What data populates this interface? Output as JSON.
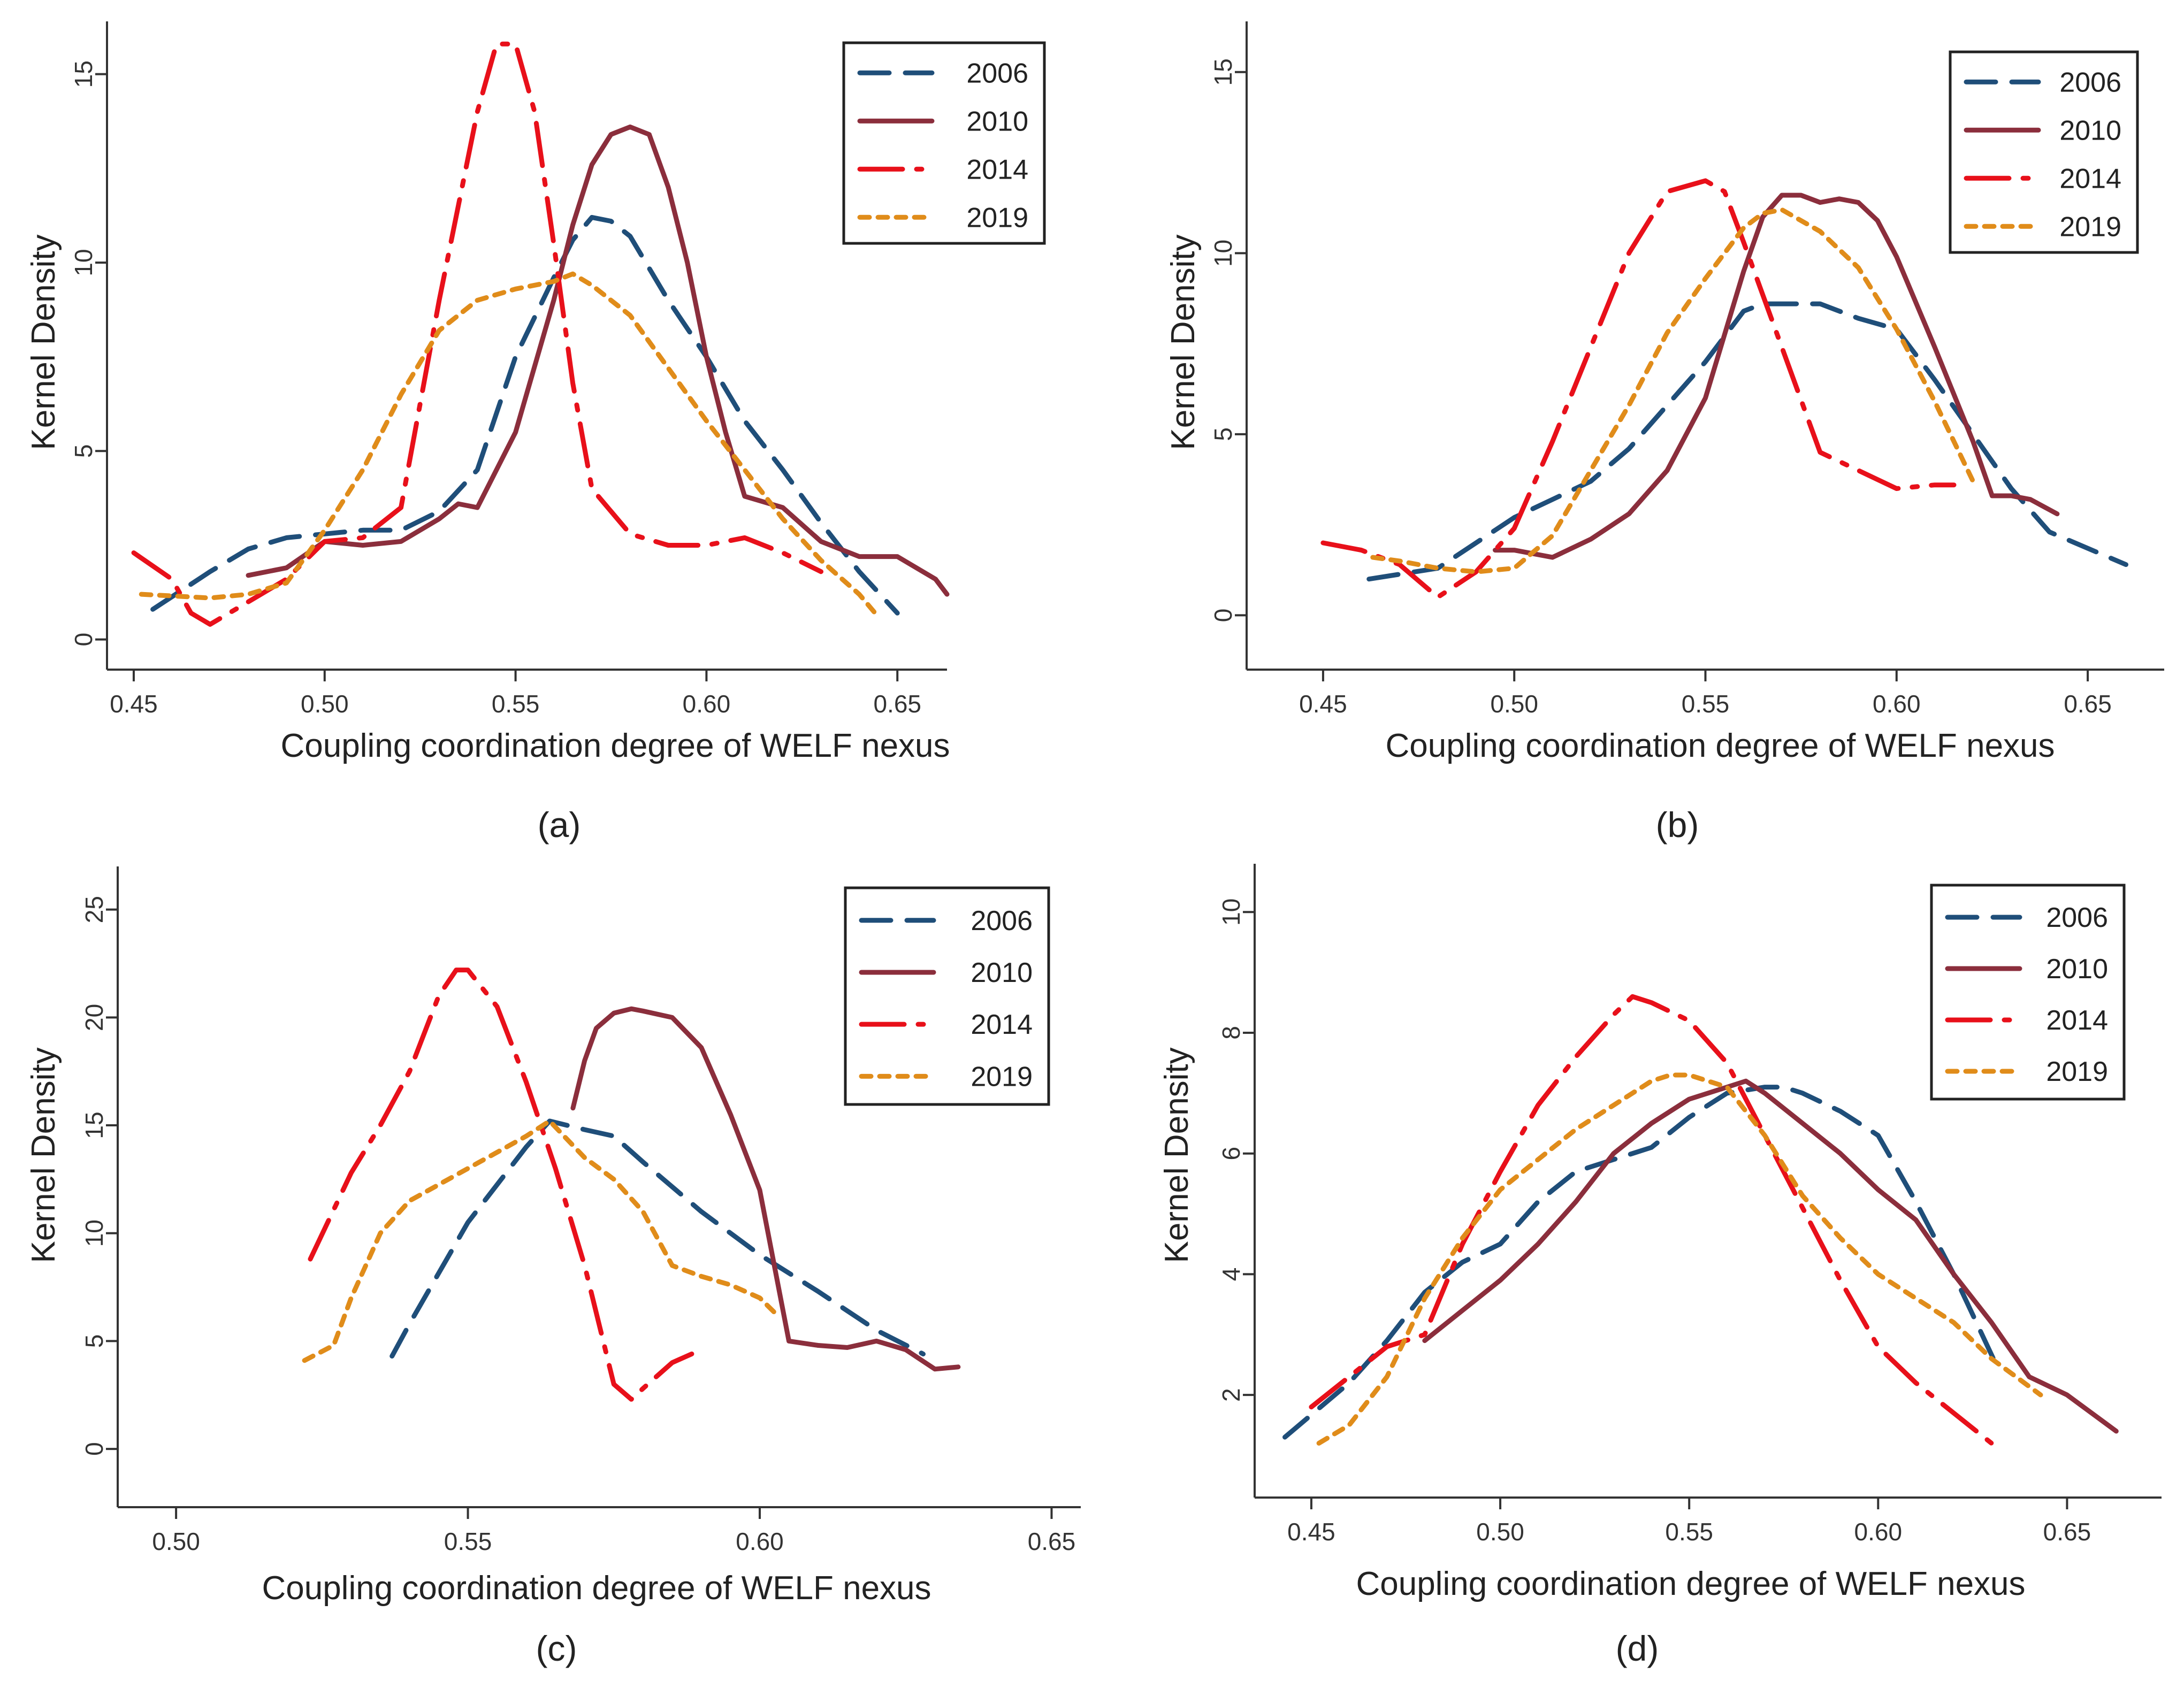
{
  "figure": {
    "caption": ""
  },
  "colors": {
    "2006": "#1f4e79",
    "2010": "#8b2e3c",
    "2014": "#e8101a",
    "2019": "#e08c1a"
  },
  "dashes": {
    "2006": "55,30",
    "2010": "",
    "2014": "80,26,10,26",
    "2019": "18,16"
  },
  "chart_data": [
    {
      "id": "a",
      "type": "line",
      "panel_label": "(a)",
      "xlabel": "Coupling coordination degree of WELF nexus",
      "ylabel": "Kernel Density",
      "xlim": [
        0.443,
        0.663
      ],
      "ylim": [
        -0.8,
        16.4
      ],
      "xticks": [
        0.45,
        0.5,
        0.55,
        0.6,
        0.65
      ],
      "xtick_labels": [
        "0.45",
        "0.50",
        "0.55",
        "0.60",
        "0.65"
      ],
      "yticks": [
        0,
        5,
        10,
        15
      ],
      "ytick_labels": [
        "0",
        "5",
        "10",
        "15"
      ],
      "legend": [
        "2006",
        "2010",
        "2014",
        "2019"
      ],
      "series": [
        {
          "name": "2006",
          "x": [
            0.455,
            0.47,
            0.48,
            0.49,
            0.5,
            0.51,
            0.52,
            0.53,
            0.54,
            0.55,
            0.56,
            0.565,
            0.57,
            0.575,
            0.58,
            0.59,
            0.6,
            0.61,
            0.62,
            0.63,
            0.64,
            0.65
          ],
          "y": [
            0.8,
            1.8,
            2.4,
            2.7,
            2.8,
            2.9,
            2.9,
            3.4,
            4.5,
            7.5,
            9.6,
            10.6,
            11.2,
            11.1,
            10.7,
            9.0,
            7.5,
            5.8,
            4.5,
            3.1,
            1.8,
            0.7
          ]
        },
        {
          "name": "2010",
          "x": [
            0.48,
            0.49,
            0.5,
            0.51,
            0.52,
            0.53,
            0.535,
            0.54,
            0.55,
            0.56,
            0.565,
            0.57,
            0.575,
            0.58,
            0.585,
            0.59,
            0.595,
            0.6,
            0.605,
            0.61,
            0.62,
            0.63,
            0.64,
            0.65,
            0.66,
            0.663
          ],
          "y": [
            1.7,
            1.9,
            2.6,
            2.5,
            2.6,
            3.2,
            3.6,
            3.5,
            5.5,
            9.0,
            11.0,
            12.6,
            13.4,
            13.6,
            13.4,
            12.0,
            10.0,
            7.5,
            5.5,
            3.8,
            3.5,
            2.6,
            2.2,
            2.2,
            1.6,
            1.2
          ]
        },
        {
          "name": "2014",
          "x": [
            0.45,
            0.46,
            0.465,
            0.47,
            0.48,
            0.49,
            0.5,
            0.51,
            0.52,
            0.53,
            0.54,
            0.545,
            0.55,
            0.555,
            0.56,
            0.565,
            0.57,
            0.58,
            0.59,
            0.6,
            0.61,
            0.62,
            0.63
          ],
          "y": [
            2.3,
            1.6,
            0.7,
            0.4,
            1.0,
            1.6,
            2.6,
            2.7,
            3.5,
            9.0,
            14.0,
            15.8,
            15.8,
            14.0,
            10.5,
            6.8,
            4.0,
            2.8,
            2.5,
            2.5,
            2.7,
            2.3,
            1.8
          ]
        },
        {
          "name": "2019",
          "x": [
            0.452,
            0.47,
            0.48,
            0.49,
            0.5,
            0.51,
            0.52,
            0.53,
            0.54,
            0.55,
            0.56,
            0.565,
            0.57,
            0.58,
            0.59,
            0.6,
            0.61,
            0.62,
            0.63,
            0.64,
            0.645
          ],
          "y": [
            1.2,
            1.1,
            1.2,
            1.5,
            2.9,
            4.5,
            6.5,
            8.2,
            9.0,
            9.3,
            9.5,
            9.7,
            9.4,
            8.6,
            7.2,
            5.8,
            4.5,
            3.2,
            2.1,
            1.2,
            0.6
          ]
        }
      ]
    },
    {
      "id": "b",
      "type": "line",
      "panel_label": "(b)",
      "xlabel": "Coupling coordination degree of WELF nexus",
      "ylabel": "Kernel Density",
      "xlim": [
        0.43,
        0.67
      ],
      "ylim": [
        -1.5,
        16.4
      ],
      "xticks": [
        0.45,
        0.5,
        0.55,
        0.6,
        0.65
      ],
      "xtick_labels": [
        "0.45",
        "0.50",
        "0.55",
        "0.60",
        "0.65"
      ],
      "yticks": [
        0,
        5,
        10,
        15
      ],
      "ytick_labels": [
        "0",
        "5",
        "10",
        "15"
      ],
      "legend": [
        "2006",
        "2010",
        "2014",
        "2019"
      ],
      "series": [
        {
          "name": "2006",
          "x": [
            0.462,
            0.48,
            0.49,
            0.5,
            0.51,
            0.52,
            0.53,
            0.54,
            0.55,
            0.56,
            0.565,
            0.57,
            0.58,
            0.59,
            0.6,
            0.61,
            0.62,
            0.63,
            0.64,
            0.66
          ],
          "y": [
            1.0,
            1.3,
            2.0,
            2.7,
            3.2,
            3.7,
            4.6,
            5.8,
            7.0,
            8.4,
            8.6,
            8.6,
            8.6,
            8.2,
            7.9,
            6.5,
            5.0,
            3.5,
            2.3,
            1.4
          ]
        },
        {
          "name": "2010",
          "x": [
            0.495,
            0.5,
            0.51,
            0.52,
            0.53,
            0.54,
            0.55,
            0.56,
            0.565,
            0.57,
            0.575,
            0.58,
            0.585,
            0.59,
            0.595,
            0.6,
            0.61,
            0.62,
            0.625,
            0.63,
            0.635,
            0.642
          ],
          "y": [
            1.8,
            1.8,
            1.6,
            2.1,
            2.8,
            4.0,
            6.0,
            9.5,
            11.0,
            11.6,
            11.6,
            11.4,
            11.5,
            11.4,
            10.9,
            9.9,
            7.4,
            4.8,
            3.3,
            3.3,
            3.2,
            2.8
          ]
        },
        {
          "name": "2014",
          "x": [
            0.45,
            0.46,
            0.47,
            0.48,
            0.49,
            0.5,
            0.51,
            0.52,
            0.53,
            0.54,
            0.55,
            0.555,
            0.56,
            0.57,
            0.58,
            0.59,
            0.6,
            0.61,
            0.615
          ],
          "y": [
            2.0,
            1.8,
            1.4,
            0.5,
            1.2,
            2.4,
            4.8,
            7.4,
            10.0,
            11.7,
            12.0,
            11.7,
            10.3,
            7.4,
            4.5,
            4.0,
            3.5,
            3.6,
            3.6
          ]
        },
        {
          "name": "2019",
          "x": [
            0.463,
            0.47,
            0.48,
            0.49,
            0.5,
            0.51,
            0.52,
            0.53,
            0.54,
            0.55,
            0.56,
            0.565,
            0.57,
            0.58,
            0.59,
            0.6,
            0.61,
            0.62
          ],
          "y": [
            1.6,
            1.5,
            1.3,
            1.2,
            1.3,
            2.2,
            4.0,
            5.8,
            7.8,
            9.3,
            10.7,
            11.1,
            11.2,
            10.6,
            9.6,
            7.9,
            5.9,
            3.7
          ]
        }
      ]
    },
    {
      "id": "c",
      "type": "line",
      "panel_label": "(c)",
      "xlabel": "Coupling coordination degree of WELF nexus",
      "ylabel": "Kernel Density",
      "xlim": [
        0.49,
        0.655
      ],
      "ylim": [
        -2.7,
        27.0
      ],
      "xticks": [
        0.5,
        0.55,
        0.6,
        0.65
      ],
      "xtick_labels": [
        "0.50",
        "0.55",
        "0.60",
        "0.65"
      ],
      "yticks": [
        0,
        5,
        10,
        15,
        20,
        25
      ],
      "ytick_labels": [
        "0",
        "5",
        "10",
        "15",
        "20",
        "25"
      ],
      "legend": [
        "2006",
        "2010",
        "2014",
        "2019"
      ],
      "series": [
        {
          "name": "2006",
          "x": [
            0.537,
            0.54,
            0.55,
            0.56,
            0.564,
            0.57,
            0.575,
            0.58,
            0.59,
            0.6,
            0.61,
            0.62,
            0.628
          ],
          "y": [
            4.3,
            5.8,
            10.5,
            14.0,
            15.2,
            14.8,
            14.5,
            13.3,
            11.0,
            9.0,
            7.3,
            5.5,
            4.4
          ]
        },
        {
          "name": "2010",
          "x": [
            0.568,
            0.57,
            0.572,
            0.575,
            0.578,
            0.58,
            0.585,
            0.59,
            0.595,
            0.6,
            0.605,
            0.61,
            0.615,
            0.62,
            0.625,
            0.63,
            0.634
          ],
          "y": [
            15.8,
            18.0,
            19.5,
            20.2,
            20.4,
            20.3,
            20.0,
            18.6,
            15.5,
            12.0,
            5.0,
            4.8,
            4.7,
            5.0,
            4.6,
            3.7,
            3.8
          ]
        },
        {
          "name": "2014",
          "x": [
            0.523,
            0.53,
            0.535,
            0.54,
            0.545,
            0.548,
            0.55,
            0.555,
            0.56,
            0.565,
            0.57,
            0.575,
            0.578,
            0.58,
            0.585,
            0.59
          ],
          "y": [
            8.8,
            12.8,
            15.0,
            17.5,
            21.0,
            22.2,
            22.2,
            20.5,
            17.0,
            13.0,
            8.5,
            3.0,
            2.3,
            2.8,
            4.0,
            4.6
          ]
        },
        {
          "name": "2019",
          "x": [
            0.522,
            0.527,
            0.53,
            0.535,
            0.54,
            0.55,
            0.56,
            0.564,
            0.57,
            0.575,
            0.58,
            0.585,
            0.59,
            0.595,
            0.6,
            0.603
          ],
          "y": [
            4.1,
            4.8,
            7.0,
            10.0,
            11.5,
            13.0,
            14.5,
            15.2,
            13.5,
            12.5,
            11.0,
            8.5,
            8.0,
            7.6,
            7.0,
            6.2
          ]
        }
      ]
    },
    {
      "id": "d",
      "type": "line",
      "panel_label": "(d)",
      "xlabel": "Coupling coordination degree of WELF nexus",
      "ylabel": "Kernel Density",
      "xlim": [
        0.435,
        0.675
      ],
      "ylim": [
        0.3,
        10.8
      ],
      "xticks": [
        0.45,
        0.5,
        0.55,
        0.6,
        0.65
      ],
      "xtick_labels": [
        "0.45",
        "0.50",
        "0.55",
        "0.60",
        "0.65"
      ],
      "yticks": [
        2,
        4,
        6,
        8,
        10
      ],
      "ytick_labels": [
        "2",
        "4",
        "6",
        "8",
        "10"
      ],
      "legend": [
        "2006",
        "2010",
        "2014",
        "2019"
      ],
      "series": [
        {
          "name": "2006",
          "x": [
            0.443,
            0.46,
            0.47,
            0.48,
            0.49,
            0.5,
            0.51,
            0.52,
            0.53,
            0.54,
            0.55,
            0.56,
            0.57,
            0.575,
            0.58,
            0.59,
            0.6,
            0.61,
            0.62,
            0.632
          ],
          "y": [
            1.3,
            2.2,
            2.9,
            3.7,
            4.2,
            4.5,
            5.2,
            5.7,
            5.9,
            6.1,
            6.6,
            7.0,
            7.1,
            7.1,
            7.0,
            6.7,
            6.3,
            5.2,
            4.0,
            2.4
          ]
        },
        {
          "name": "2010",
          "x": [
            0.48,
            0.49,
            0.5,
            0.51,
            0.52,
            0.53,
            0.54,
            0.55,
            0.56,
            0.565,
            0.57,
            0.58,
            0.59,
            0.6,
            0.61,
            0.62,
            0.63,
            0.64,
            0.65,
            0.663
          ],
          "y": [
            2.9,
            3.4,
            3.9,
            4.5,
            5.2,
            6.0,
            6.5,
            6.9,
            7.1,
            7.2,
            7.0,
            6.5,
            6.0,
            5.4,
            4.9,
            4.0,
            3.2,
            2.3,
            2.0,
            1.4
          ]
        },
        {
          "name": "2014",
          "x": [
            0.45,
            0.46,
            0.47,
            0.48,
            0.49,
            0.5,
            0.51,
            0.52,
            0.53,
            0.535,
            0.54,
            0.55,
            0.56,
            0.57,
            0.58,
            0.59,
            0.6,
            0.61,
            0.62,
            0.63
          ],
          "y": [
            1.8,
            2.3,
            2.8,
            3.0,
            4.5,
            5.7,
            6.8,
            7.6,
            8.3,
            8.6,
            8.5,
            8.2,
            7.5,
            6.3,
            5.1,
            3.9,
            2.8,
            2.2,
            1.7,
            1.2
          ]
        },
        {
          "name": "2019",
          "x": [
            0.452,
            0.46,
            0.47,
            0.48,
            0.49,
            0.5,
            0.51,
            0.52,
            0.53,
            0.54,
            0.545,
            0.55,
            0.56,
            0.57,
            0.58,
            0.59,
            0.6,
            0.61,
            0.62,
            0.63,
            0.643
          ],
          "y": [
            1.2,
            1.5,
            2.3,
            3.6,
            4.6,
            5.4,
            5.9,
            6.4,
            6.8,
            7.2,
            7.3,
            7.3,
            7.1,
            6.3,
            5.3,
            4.6,
            4.0,
            3.6,
            3.2,
            2.6,
            2.0
          ]
        }
      ]
    }
  ]
}
